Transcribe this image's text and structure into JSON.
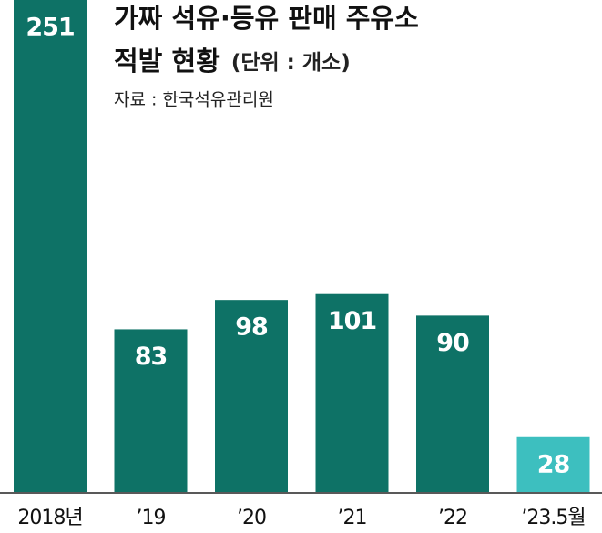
{
  "chart_data": {
    "type": "bar",
    "title": [
      "가짜 석유·등유 판매 주유소",
      "적발 현황"
    ],
    "unit": "(단위 : 개소)",
    "source": "자료 : 한국석유관리원",
    "categories": [
      "2018년",
      "’19",
      "’20",
      "’21",
      "’22",
      "’23.5월"
    ],
    "values": [
      251,
      83,
      98,
      101,
      90,
      28
    ],
    "colors": [
      "#0e7266",
      "#0e7266",
      "#0e7266",
      "#0e7266",
      "#0e7266",
      "#3dbfbf"
    ]
  }
}
